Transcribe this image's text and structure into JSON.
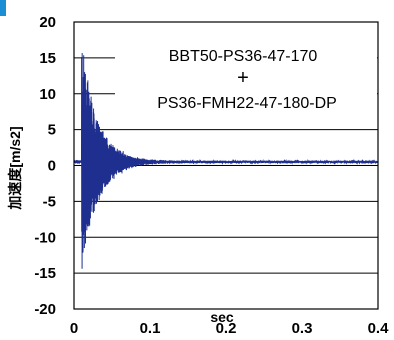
{
  "chart_data": {
    "type": "line",
    "title": "",
    "xlabel": "sec",
    "ylabel": "加速度[m/s2]",
    "xlim": [
      0,
      0.4
    ],
    "ylim": [
      -20,
      20
    ],
    "x_ticks": [
      0,
      0.1,
      0.2,
      0.3,
      0.4
    ],
    "x_tick_labels": [
      "0",
      "0.1",
      "0.2",
      "0.3",
      "0.4"
    ],
    "y_ticks": [
      20,
      15,
      10,
      5,
      0,
      -5,
      -10,
      -15,
      -20
    ],
    "y_tick_labels": [
      "20",
      "15",
      "10",
      "5",
      "0",
      "-5",
      "-10",
      "-15",
      "-20"
    ],
    "grid": "horizontal",
    "annotation_lines": [
      "BBT50-PS36-47-170",
      "+",
      "PS36-FMH22-47-180-DP"
    ],
    "series": [
      {
        "color": "#1f2f8f",
        "signal": "decaying oscillation",
        "onset": 0.01,
        "baseline": 0.5,
        "peak_max": 17.6,
        "peak_min": -16.3
      }
    ]
  },
  "colors": {
    "accent": "#1a8fd6",
    "grid": "#000000",
    "series": "#1f2f8f"
  }
}
